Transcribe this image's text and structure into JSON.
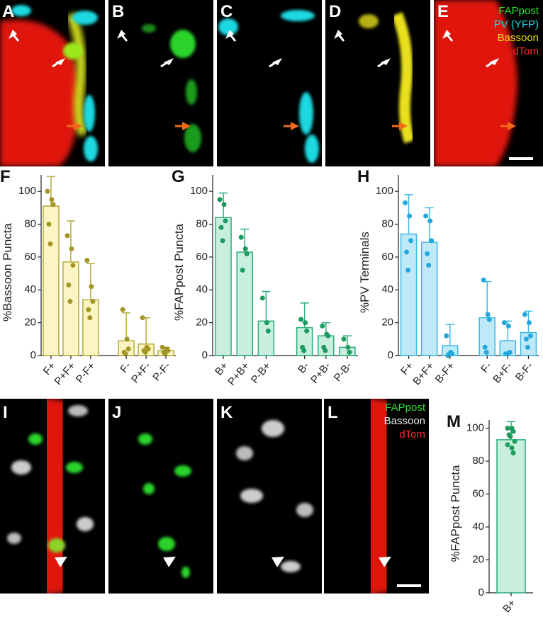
{
  "images_top": [
    {
      "label": "A"
    },
    {
      "label": "B"
    },
    {
      "label": "C"
    },
    {
      "label": "D"
    },
    {
      "label": "E"
    }
  ],
  "legend_top": [
    "FAPpost",
    "PV (YFP)",
    "Bassoon",
    "dTom"
  ],
  "images_bottom": [
    {
      "label": "I"
    },
    {
      "label": "J"
    },
    {
      "label": "K"
    },
    {
      "label": "L"
    }
  ],
  "legend_bottom": [
    "FAPpost",
    "Bassoon",
    "dTom"
  ],
  "chart_data": [
    {
      "type": "bar",
      "panel_label": "F",
      "y_label": "%Bassoon Puncta",
      "categories": [
        "F+",
        "P+F+",
        "P-F+",
        "F-",
        "P+F-",
        "P-F-"
      ],
      "values": [
        91,
        57,
        34,
        9,
        7,
        3
      ],
      "errors": [
        18,
        25,
        22,
        17,
        16,
        2
      ],
      "points": [
        [
          100,
          95,
          92,
          80,
          68
        ],
        [
          73,
          65,
          55,
          43,
          33
        ],
        [
          58,
          42,
          33,
          28,
          23
        ],
        [
          28,
          10,
          4,
          2,
          1
        ],
        [
          23,
          5,
          4,
          3,
          2
        ],
        [
          5,
          4,
          3,
          2,
          1
        ]
      ],
      "color": "#faf5c3",
      "edge_color": "#b5ab3a",
      "point_color": "#a39626",
      "ylim": [
        0,
        110
      ],
      "yticks": [
        0,
        20,
        40,
        60,
        80,
        100
      ]
    },
    {
      "type": "bar",
      "panel_label": "G",
      "y_label": "%FAPpost Puncta",
      "categories": [
        "B+",
        "P+B+",
        "P-B+",
        "B-",
        "P+B-",
        "P-B-"
      ],
      "values": [
        84,
        63,
        21,
        17,
        12,
        5
      ],
      "errors": [
        15,
        14,
        18,
        15,
        8,
        7
      ],
      "points": [
        [
          95,
          92,
          82,
          78,
          70
        ],
        [
          72,
          65,
          62,
          52
        ],
        [
          35,
          20,
          15
        ],
        [
          22,
          20,
          15,
          5,
          3
        ],
        [
          18,
          13,
          12,
          5,
          3
        ],
        [
          10,
          5,
          2
        ]
      ],
      "color": "#c8eede",
      "edge_color": "#2bad7a",
      "point_color": "#1d9a5f",
      "ylim": [
        0,
        110
      ],
      "yticks": [
        0,
        20,
        40,
        60,
        80,
        100
      ]
    },
    {
      "type": "bar",
      "panel_label": "H",
      "y_label": "%PV Terminals",
      "categories": [
        "F+",
        "B+F+",
        "B-F+",
        "F-",
        "B+F-",
        "B-F-"
      ],
      "values": [
        74,
        69,
        6,
        23,
        9,
        14
      ],
      "errors": [
        24,
        21,
        13,
        22,
        12,
        13
      ],
      "points": [
        [
          93,
          85,
          70,
          63,
          52
        ],
        [
          85,
          82,
          70,
          62,
          55
        ],
        [
          12,
          2,
          1,
          0,
          1
        ],
        [
          46,
          25,
          22,
          5,
          2
        ],
        [
          20,
          18,
          2,
          1,
          1
        ],
        [
          25,
          20,
          12,
          10,
          5
        ]
      ],
      "color": "#bfe9f7",
      "edge_color": "#3bb9e4",
      "point_color": "#23a7dd",
      "ylim": [
        0,
        110
      ],
      "yticks": [
        0,
        20,
        40,
        60,
        80,
        100
      ]
    },
    {
      "type": "bar",
      "panel_label": "M",
      "y_label": "%FAPpost Puncta",
      "categories": [
        "B+"
      ],
      "values": [
        93
      ],
      "errors": [
        11
      ],
      "points": [
        [
          100,
          100,
          98,
          96,
          95,
          92,
          90,
          88,
          85
        ]
      ],
      "color": "#c8eede",
      "edge_color": "#2bad7a",
      "point_color": "#1d9a5f",
      "ylim": [
        0,
        105
      ],
      "yticks": [
        0,
        20,
        40,
        60,
        80,
        100
      ]
    }
  ]
}
